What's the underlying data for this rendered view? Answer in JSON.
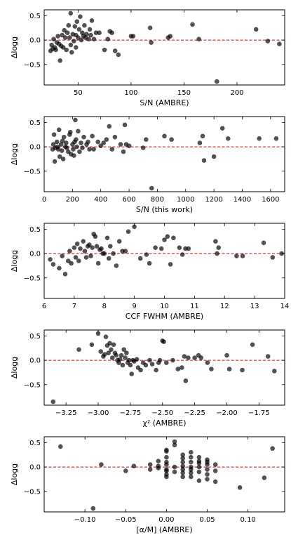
{
  "chart_data": [
    {
      "type": "scatter",
      "xlabel": "S/N (AMBRE)",
      "ylabel": "Δlogg",
      "xlim": [
        18,
        245
      ],
      "ylim": [
        -0.92,
        0.62
      ],
      "xticks": [
        50,
        100,
        150,
        200
      ],
      "xtick_labels": [
        "50",
        "100",
        "150",
        "200"
      ],
      "yticks": [
        -0.5,
        0.0,
        0.5
      ],
      "ytick_labels": [
        "−0.5",
        "0.0",
        "0.5"
      ],
      "reference_line": 0,
      "points": [
        [
          24,
          -0.22
        ],
        [
          25,
          -0.1
        ],
        [
          26,
          -0.18
        ],
        [
          27,
          0.02
        ],
        [
          28,
          -0.15
        ],
        [
          29,
          -0.2
        ],
        [
          30,
          -0.05
        ],
        [
          31,
          0.08
        ],
        [
          32,
          -0.08
        ],
        [
          33,
          -0.42
        ],
        [
          34,
          -0.12
        ],
        [
          35,
          0.1
        ],
        [
          36,
          -0.15
        ],
        [
          37,
          0.2
        ],
        [
          38,
          0.05
        ],
        [
          39,
          -0.2
        ],
        [
          40,
          0.15
        ],
        [
          41,
          0.3
        ],
        [
          42,
          0.05
        ],
        [
          43,
          -0.1
        ],
        [
          43,
          0.55
        ],
        [
          44,
          -0.25
        ],
        [
          45,
          0.12
        ],
        [
          46,
          -0.02
        ],
        [
          47,
          0.28
        ],
        [
          48,
          0.1
        ],
        [
          48,
          -0.15
        ],
        [
          49,
          0.38
        ],
        [
          50,
          0.05
        ],
        [
          51,
          0.22
        ],
        [
          52,
          0.48
        ],
        [
          53,
          0.0
        ],
        [
          54,
          0.15
        ],
        [
          55,
          0.08
        ],
        [
          56,
          0.3
        ],
        [
          57,
          0.05
        ],
        [
          58,
          0.12
        ],
        [
          60,
          0.02
        ],
        [
          61,
          0.22
        ],
        [
          62,
          0.1
        ],
        [
          63,
          0.4
        ],
        [
          65,
          0.02
        ],
        [
          67,
          0.15
        ],
        [
          70,
          0.15
        ],
        [
          75,
          -0.2
        ],
        [
          78,
          0.02
        ],
        [
          80,
          0.18
        ],
        [
          82,
          0.15
        ],
        [
          85,
          -0.22
        ],
        [
          88,
          -0.3
        ],
        [
          100,
          0.08
        ],
        [
          102,
          0.08
        ],
        [
          118,
          0.25
        ],
        [
          119,
          -0.05
        ],
        [
          135,
          0.05
        ],
        [
          137,
          0.08
        ],
        [
          158,
          0.32
        ],
        [
          164,
          0.02
        ],
        [
          181,
          -0.85
        ],
        [
          218,
          0.22
        ],
        [
          229,
          -0.02
        ],
        [
          240,
          -0.08
        ]
      ]
    },
    {
      "type": "scatter",
      "xlabel": "S/N (this work)",
      "ylabel": "Δlogg",
      "xlim": [
        0,
        1700
      ],
      "ylim": [
        -0.92,
        0.62
      ],
      "xticks": [
        0,
        200,
        400,
        600,
        800,
        1000,
        1200,
        1400,
        1600
      ],
      "xtick_labels": [
        "0",
        "200",
        "400",
        "600",
        "800",
        "1000",
        "1200",
        "1400",
        "1600"
      ],
      "yticks": [
        -0.5,
        0.0,
        0.5
      ],
      "ytick_labels": [
        "−0.5",
        "0.0",
        "0.5"
      ],
      "reference_line": 0,
      "points": [
        [
          60,
          -0.05
        ],
        [
          65,
          0.05
        ],
        [
          70,
          0.25
        ],
        [
          75,
          -0.3
        ],
        [
          80,
          -0.02
        ],
        [
          90,
          0.1
        ],
        [
          95,
          0.0
        ],
        [
          100,
          -0.05
        ],
        [
          105,
          0.35
        ],
        [
          110,
          -0.2
        ],
        [
          120,
          0.05
        ],
        [
          125,
          -0.08
        ],
        [
          130,
          0.12
        ],
        [
          135,
          -0.25
        ],
        [
          140,
          0.2
        ],
        [
          150,
          0.0
        ],
        [
          155,
          0.08
        ],
        [
          160,
          -0.02
        ],
        [
          170,
          -0.1
        ],
        [
          180,
          0.25
        ],
        [
          185,
          0.3
        ],
        [
          190,
          -0.15
        ],
        [
          200,
          0.05
        ],
        [
          205,
          -0.05
        ],
        [
          210,
          -0.18
        ],
        [
          215,
          0.1
        ],
        [
          220,
          0.55
        ],
        [
          225,
          0.15
        ],
        [
          230,
          0.0
        ],
        [
          240,
          0.32
        ],
        [
          250,
          -0.1
        ],
        [
          260,
          0.08
        ],
        [
          270,
          -0.02
        ],
        [
          280,
          0.2
        ],
        [
          300,
          0.05
        ],
        [
          310,
          0.1
        ],
        [
          320,
          -0.05
        ],
        [
          340,
          0.22
        ],
        [
          350,
          -0.05
        ],
        [
          380,
          0.1
        ],
        [
          400,
          0.02
        ],
        [
          420,
          0.08
        ],
        [
          440,
          0.15
        ],
        [
          460,
          0.42
        ],
        [
          480,
          -0.05
        ],
        [
          500,
          0.2
        ],
        [
          540,
          0.05
        ],
        [
          560,
          -0.1
        ],
        [
          570,
          0.45
        ],
        [
          580,
          0.05
        ],
        [
          600,
          0.02
        ],
        [
          700,
          -0.02
        ],
        [
          720,
          0.15
        ],
        [
          760,
          -0.85
        ],
        [
          850,
          0.22
        ],
        [
          900,
          0.15
        ],
        [
          1100,
          0.08
        ],
        [
          1120,
          0.22
        ],
        [
          1130,
          -0.28
        ],
        [
          1200,
          -0.2
        ],
        [
          1260,
          0.38
        ],
        [
          1300,
          0.17
        ],
        [
          1520,
          0.17
        ],
        [
          1640,
          0.17
        ]
      ]
    },
    {
      "type": "scatter",
      "xlabel": "CCF FWHM (AMBRE)",
      "ylabel": "Δlogg",
      "xlim": [
        6,
        14
      ],
      "ylim": [
        -0.92,
        0.62
      ],
      "xticks": [
        6,
        7,
        8,
        9,
        10,
        11,
        12,
        13,
        14
      ],
      "xtick_labels": [
        "6",
        "7",
        "8",
        "9",
        "10",
        "11",
        "12",
        "13",
        "14"
      ],
      "yticks": [
        -0.5,
        0.0,
        0.5
      ],
      "ytick_labels": [
        "−0.5",
        "0.0",
        "0.5"
      ],
      "reference_line": 0,
      "points": [
        [
          6.2,
          -0.12
        ],
        [
          6.3,
          -0.22
        ],
        [
          6.5,
          -0.3
        ],
        [
          6.6,
          -0.05
        ],
        [
          6.7,
          -0.42
        ],
        [
          6.8,
          -0.15
        ],
        [
          6.85,
          0.05
        ],
        [
          6.9,
          -0.2
        ],
        [
          7.0,
          0.12
        ],
        [
          7.05,
          -0.08
        ],
        [
          7.1,
          0.2
        ],
        [
          7.15,
          -0.15
        ],
        [
          7.2,
          0.1
        ],
        [
          7.3,
          0.25
        ],
        [
          7.35,
          0.05
        ],
        [
          7.4,
          -0.08
        ],
        [
          7.45,
          0.15
        ],
        [
          7.5,
          0.18
        ],
        [
          7.55,
          -0.05
        ],
        [
          7.6,
          0.12
        ],
        [
          7.65,
          0.4
        ],
        [
          7.7,
          0.35
        ],
        [
          7.75,
          0.15
        ],
        [
          7.8,
          -0.2
        ],
        [
          7.85,
          0.08
        ],
        [
          7.9,
          0.1
        ],
        [
          7.95,
          0.0
        ],
        [
          8.0,
          0.0
        ],
        [
          8.1,
          0.32
        ],
        [
          8.15,
          -0.1
        ],
        [
          8.2,
          0.15
        ],
        [
          8.3,
          0.0
        ],
        [
          8.4,
          -0.25
        ],
        [
          8.5,
          0.25
        ],
        [
          8.6,
          0.05
        ],
        [
          8.7,
          0.05
        ],
        [
          8.8,
          0.45
        ],
        [
          9.0,
          0.55
        ],
        [
          9.2,
          -0.1
        ],
        [
          9.4,
          -0.02
        ],
        [
          9.5,
          -0.2
        ],
        [
          9.7,
          0.12
        ],
        [
          9.9,
          0.1
        ],
        [
          10.0,
          0.28
        ],
        [
          10.1,
          0.35
        ],
        [
          10.2,
          -0.22
        ],
        [
          10.3,
          0.32
        ],
        [
          10.5,
          0.12
        ],
        [
          10.6,
          -0.02
        ],
        [
          10.7,
          0.1
        ],
        [
          10.8,
          0.1
        ],
        [
          11.7,
          0.25
        ],
        [
          11.75,
          0.0
        ],
        [
          11.8,
          0.12
        ],
        [
          12.4,
          -0.05
        ],
        [
          12.6,
          -0.05
        ],
        [
          13.3,
          0.22
        ],
        [
          13.6,
          -0.08
        ],
        [
          13.9,
          0.0
        ]
      ]
    },
    {
      "type": "scatter",
      "xlabel": "χ² (AMBRE)",
      "ylabel": "Δlogg",
      "xlim": [
        -3.42,
        -1.55
      ],
      "ylim": [
        -0.92,
        0.62
      ],
      "xticks": [
        -3.25,
        -3.0,
        -2.75,
        -2.5,
        -2.25,
        -2.0,
        -1.75
      ],
      "xtick_labels": [
        "−3.25",
        "−3.00",
        "−2.75",
        "−2.50",
        "−2.25",
        "−2.00",
        "−1.75"
      ],
      "yticks": [
        -0.5,
        0.0,
        0.5
      ],
      "ytick_labels": [
        "−0.5",
        "0.0",
        "0.5"
      ],
      "reference_line": 0,
      "points": [
        [
          -3.35,
          -0.85
        ],
        [
          -3.15,
          0.22
        ],
        [
          -3.05,
          0.32
        ],
        [
          -3.0,
          0.55
        ],
        [
          -2.98,
          0.18
        ],
        [
          -2.96,
          0.08
        ],
        [
          -2.95,
          0.12
        ],
        [
          -2.94,
          0.48
        ],
        [
          -2.93,
          0.3
        ],
        [
          -2.92,
          0.15
        ],
        [
          -2.91,
          0.35
        ],
        [
          -2.9,
          0.22
        ],
        [
          -2.89,
          0.05
        ],
        [
          -2.88,
          0.32
        ],
        [
          -2.87,
          0.15
        ],
        [
          -2.86,
          0.1
        ],
        [
          -2.85,
          0.0
        ],
        [
          -2.84,
          -0.05
        ],
        [
          -2.83,
          0.02
        ],
        [
          -2.82,
          0.1
        ],
        [
          -2.81,
          -0.1
        ],
        [
          -2.8,
          0.22
        ],
        [
          -2.79,
          0.05
        ],
        [
          -2.78,
          0.15
        ],
        [
          -2.77,
          -0.05
        ],
        [
          -2.76,
          0.0
        ],
        [
          -2.75,
          -0.1
        ],
        [
          -2.74,
          -0.28
        ],
        [
          -2.73,
          0.0
        ],
        [
          -2.72,
          -0.02
        ],
        [
          -2.7,
          0.02
        ],
        [
          -2.69,
          -0.15
        ],
        [
          -2.67,
          -0.2
        ],
        [
          -2.65,
          -0.05
        ],
        [
          -2.63,
          -0.1
        ],
        [
          -2.6,
          0.0
        ],
        [
          -2.58,
          -0.08
        ],
        [
          -2.55,
          -0.2
        ],
        [
          -2.53,
          -0.05
        ],
        [
          -2.52,
          0.0
        ],
        [
          -2.5,
          0.4
        ],
        [
          -2.49,
          0.38
        ],
        [
          -2.47,
          -0.05
        ],
        [
          -2.42,
          0.0
        ],
        [
          -2.38,
          -0.18
        ],
        [
          -2.35,
          -0.15
        ],
        [
          -2.33,
          0.08
        ],
        [
          -2.32,
          -0.42
        ],
        [
          -2.3,
          0.05
        ],
        [
          -2.25,
          0.05
        ],
        [
          -2.22,
          0.1
        ],
        [
          -2.2,
          0.05
        ],
        [
          -2.15,
          -0.05
        ],
        [
          -2.12,
          -0.18
        ],
        [
          -2.0,
          0.1
        ],
        [
          -1.98,
          -0.18
        ],
        [
          -1.88,
          -0.2
        ],
        [
          -1.8,
          0.32
        ],
        [
          -1.68,
          0.08
        ],
        [
          -1.63,
          -0.22
        ]
      ]
    },
    {
      "type": "scatter",
      "xlabel": "[α/M] (AMBRE)",
      "ylabel": "Δlogg",
      "xlim": [
        -0.15,
        0.145
      ],
      "ylim": [
        -0.92,
        0.62
      ],
      "xticks": [
        -0.1,
        -0.05,
        0.0,
        0.05,
        0.1
      ],
      "xtick_labels": [
        "−0.10",
        "−0.05",
        "0.00",
        "0.05",
        "0.10"
      ],
      "yticks": [
        -0.5,
        0.0,
        0.5
      ],
      "ytick_labels": [
        "−0.5",
        "0.0",
        "0.5"
      ],
      "reference_line": 0,
      "points": [
        [
          -0.13,
          0.42
        ],
        [
          -0.09,
          -0.85
        ],
        [
          -0.08,
          0.05
        ],
        [
          -0.05,
          -0.08
        ],
        [
          -0.04,
          0.02
        ],
        [
          -0.02,
          -0.05
        ],
        [
          -0.02,
          0.05
        ],
        [
          -0.01,
          0.02
        ],
        [
          -0.01,
          0.12
        ],
        [
          -0.01,
          -0.02
        ],
        [
          0.0,
          0.35
        ],
        [
          0.0,
          0.32
        ],
        [
          0.0,
          0.2
        ],
        [
          0.0,
          0.1
        ],
        [
          0.0,
          0.05
        ],
        [
          0.0,
          -0.05
        ],
        [
          0.0,
          -0.08
        ],
        [
          0.0,
          -0.15
        ],
        [
          0.0,
          -0.2
        ],
        [
          0.01,
          0.52
        ],
        [
          0.01,
          0.45
        ],
        [
          0.01,
          0.0
        ],
        [
          0.01,
          -0.1
        ],
        [
          0.02,
          0.25
        ],
        [
          0.02,
          0.18
        ],
        [
          0.02,
          0.1
        ],
        [
          0.02,
          0.02
        ],
        [
          0.02,
          -0.05
        ],
        [
          0.02,
          -0.12
        ],
        [
          0.02,
          -0.2
        ],
        [
          0.03,
          0.3
        ],
        [
          0.03,
          0.2
        ],
        [
          0.03,
          0.1
        ],
        [
          0.03,
          0.0
        ],
        [
          0.03,
          -0.05
        ],
        [
          0.03,
          -0.12
        ],
        [
          0.03,
          -0.2
        ],
        [
          0.04,
          0.2
        ],
        [
          0.04,
          0.12
        ],
        [
          0.04,
          0.08
        ],
        [
          0.04,
          0.0
        ],
        [
          0.04,
          -0.1
        ],
        [
          0.04,
          -0.28
        ],
        [
          0.05,
          0.15
        ],
        [
          0.05,
          0.1
        ],
        [
          0.05,
          0.05
        ],
        [
          0.05,
          -0.05
        ],
        [
          0.05,
          -0.15
        ],
        [
          0.05,
          -0.25
        ],
        [
          0.06,
          0.05
        ],
        [
          0.06,
          -0.08
        ],
        [
          0.06,
          -0.3
        ],
        [
          0.09,
          -0.42
        ],
        [
          0.12,
          -0.22
        ],
        [
          0.13,
          0.38
        ]
      ]
    }
  ]
}
